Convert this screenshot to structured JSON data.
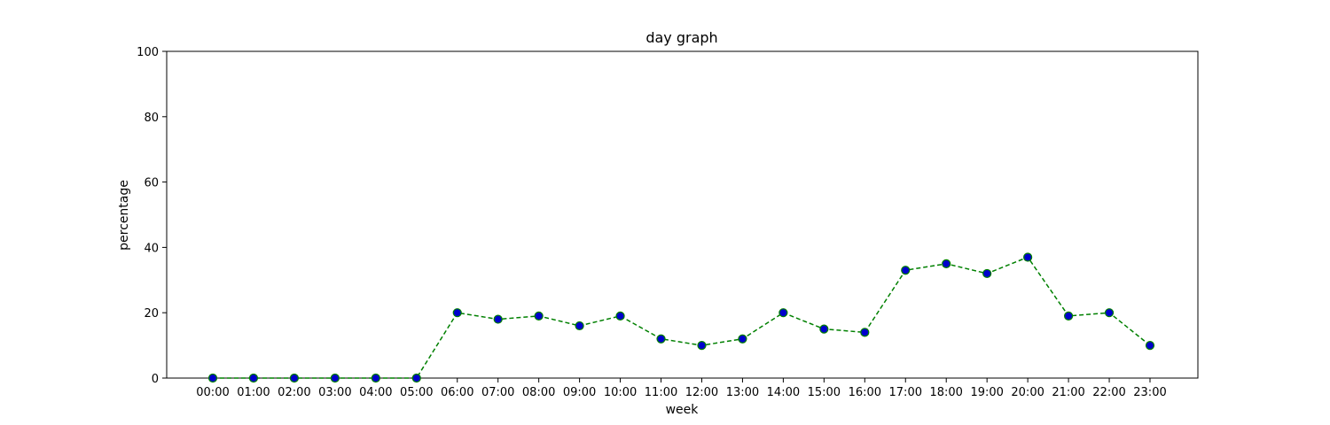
{
  "chart_data": {
    "type": "line",
    "title": "day graph",
    "xlabel": "week",
    "ylabel": "percentage",
    "ylim": [
      0,
      100
    ],
    "yticks": [
      0,
      20,
      40,
      60,
      80,
      100
    ],
    "grid": false,
    "categories": [
      "00:00",
      "01:00",
      "02:00",
      "03:00",
      "04:00",
      "05:00",
      "06:00",
      "07:00",
      "08:00",
      "09:00",
      "10:00",
      "11:00",
      "12:00",
      "13:00",
      "14:00",
      "15:00",
      "16:00",
      "17:00",
      "18:00",
      "19:00",
      "20:00",
      "21:00",
      "22:00",
      "23:00"
    ],
    "series": [
      {
        "values": [
          0,
          0,
          0,
          0,
          0,
          0,
          20,
          18,
          19,
          16,
          19,
          12,
          10,
          12,
          20,
          15,
          14,
          33,
          35,
          32,
          37,
          19,
          20,
          10
        ],
        "line_color": "#008000",
        "line_style": "dashed",
        "marker": "circle",
        "marker_face_color": "#0000cc",
        "marker_edge_color": "#008000"
      }
    ]
  }
}
